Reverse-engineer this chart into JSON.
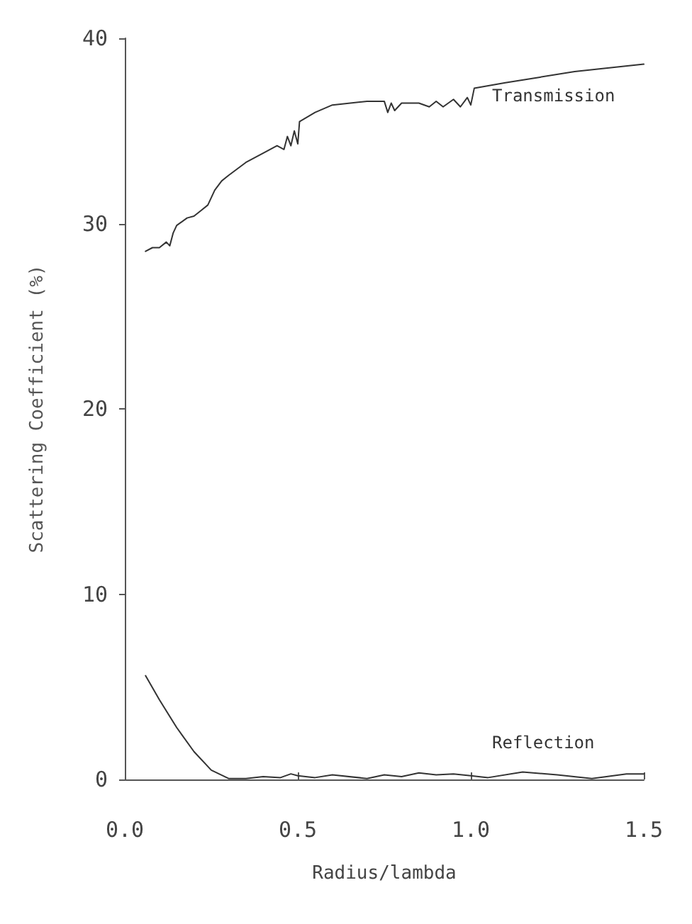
{
  "chart_data": {
    "type": "line",
    "xlabel": "Radius/lambda",
    "ylabel": "Scattering Coefficient (%)",
    "xlim": [
      0,
      1.5
    ],
    "xticks": [
      {
        "value": 0,
        "label": "0.0"
      },
      0.5,
      {
        "value": 1,
        "label": "1.0"
      },
      1.5
    ],
    "ylim": [
      0,
      40
    ],
    "yticks": [
      0,
      10,
      20,
      30,
      40
    ],
    "grid": false,
    "legend": false,
    "marker": "none",
    "line_style": "solid",
    "series": [
      {
        "name": "Transmission",
        "color": "#333333",
        "x": [
          0.06,
          0.08,
          0.1,
          0.12,
          0.13,
          0.14,
          0.15,
          0.18,
          0.2,
          0.22,
          0.24,
          0.25,
          0.26,
          0.28,
          0.3,
          0.35,
          0.4,
          0.42,
          0.44,
          0.46,
          0.47,
          0.48,
          0.49,
          0.5,
          0.505,
          0.55,
          0.6,
          0.7,
          0.75,
          0.76,
          0.77,
          0.78,
          0.8,
          0.85,
          0.88,
          0.9,
          0.92,
          0.95,
          0.97,
          0.99,
          1.0,
          1.01,
          1.1,
          1.2,
          1.3,
          1.4,
          1.5
        ],
        "values": [
          28.5,
          28.7,
          28.7,
          29.0,
          28.8,
          29.5,
          29.9,
          30.3,
          30.4,
          30.7,
          31.0,
          31.4,
          31.8,
          32.3,
          32.6,
          33.3,
          33.8,
          34.0,
          34.2,
          34.0,
          34.7,
          34.2,
          35.0,
          34.3,
          35.5,
          36.0,
          36.4,
          36.6,
          36.6,
          36.0,
          36.5,
          36.1,
          36.5,
          36.5,
          36.3,
          36.6,
          36.3,
          36.7,
          36.3,
          36.8,
          36.4,
          37.3,
          37.6,
          37.9,
          38.2,
          38.4,
          38.6
        ]
      },
      {
        "name": "Reflection",
        "color": "#333333",
        "x": [
          0.06,
          0.1,
          0.15,
          0.2,
          0.25,
          0.3,
          0.35,
          0.4,
          0.45,
          0.48,
          0.5,
          0.55,
          0.6,
          0.7,
          0.75,
          0.8,
          0.85,
          0.9,
          0.95,
          1.0,
          1.05,
          1.15,
          1.25,
          1.35,
          1.45,
          1.5
        ],
        "values": [
          5.6,
          4.3,
          2.8,
          1.5,
          0.5,
          0.05,
          0.05,
          0.15,
          0.1,
          0.3,
          0.2,
          0.1,
          0.25,
          0.05,
          0.25,
          0.15,
          0.35,
          0.25,
          0.3,
          0.2,
          0.1,
          0.4,
          0.25,
          0.05,
          0.3,
          0.3
        ]
      }
    ]
  }
}
